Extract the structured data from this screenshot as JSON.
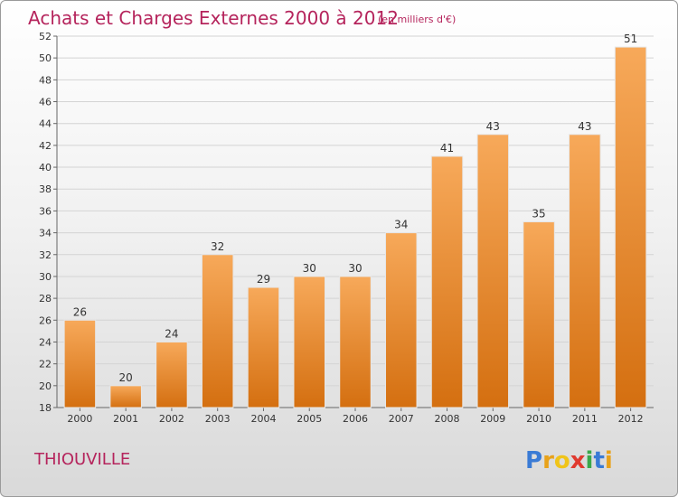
{
  "chart_data": {
    "type": "bar",
    "title": "Achats et Charges Externes 2000 à 2012",
    "subtitle": "(en milliers d'€)",
    "categories": [
      "2000",
      "2001",
      "2002",
      "2003",
      "2004",
      "2005",
      "2006",
      "2007",
      "2008",
      "2009",
      "2010",
      "2011",
      "2012"
    ],
    "values": [
      26,
      20,
      24,
      32,
      29,
      30,
      30,
      34,
      41,
      43,
      35,
      43,
      51
    ],
    "ylim": [
      18,
      52
    ],
    "yticks": [
      18,
      20,
      22,
      24,
      26,
      28,
      30,
      32,
      34,
      36,
      38,
      40,
      42,
      44,
      46,
      48,
      50,
      52
    ],
    "grid": true,
    "bar_color": "#f08c2a",
    "bar_color_light": "#f7a95a",
    "bar_color_dark": "#d46f10"
  },
  "commune": "THIOUVILLE",
  "logo": {
    "letters": [
      "P",
      "r",
      "o",
      "x",
      "i",
      "t",
      "i"
    ],
    "colors": [
      "#3a7bd5",
      "#e8a21a",
      "#f0c419",
      "#e03a2f",
      "#3aa84a",
      "#3a7bd5",
      "#e8a21a"
    ]
  }
}
